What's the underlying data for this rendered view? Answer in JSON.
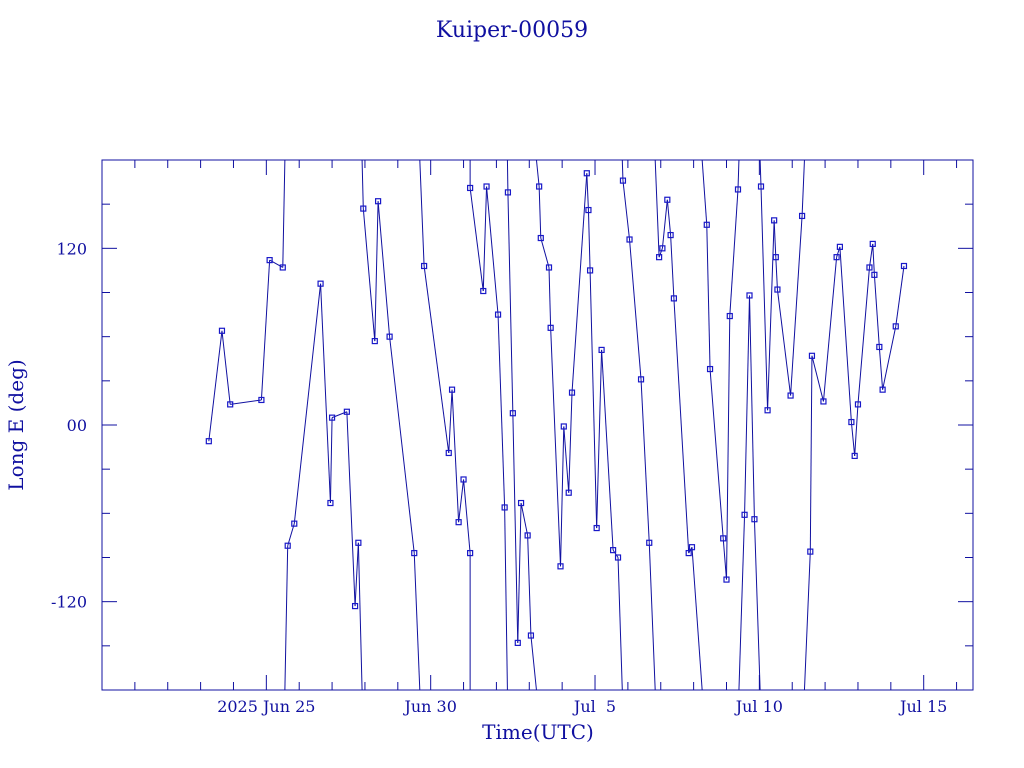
{
  "chart_data": {
    "type": "line",
    "title": "Kuiper-00059",
    "xlabel": "Time(UTC)",
    "ylabel": "Long E (deg)",
    "x_range_days_from_jun20": [
      0,
      26.5
    ],
    "ylim": [
      -180,
      180
    ],
    "y_ticks_major": [
      {
        "value": -120,
        "label": "-120"
      },
      {
        "value": 0,
        "label": "00"
      },
      {
        "value": 120,
        "label": "120"
      }
    ],
    "y_ticks_minor_step": 30,
    "x_ticks_major": [
      {
        "day": 5,
        "label": "2025 Jun 25"
      },
      {
        "day": 10,
        "label": "Jun 30"
      },
      {
        "day": 15,
        "label": "Jul  5"
      },
      {
        "day": 20,
        "label": "Jul 10"
      },
      {
        "day": 25,
        "label": "Jul 15"
      }
    ],
    "colors": {
      "line": "#1010a0",
      "marker": "#1818c8",
      "axes": "#1010a0"
    },
    "series": [
      {
        "wraps_at": 180,
        "points": [
          [
            3.25,
            -11
          ],
          [
            3.65,
            64
          ],
          [
            3.9,
            14
          ],
          [
            4.85,
            17
          ],
          [
            5.1,
            112
          ],
          [
            5.5,
            107
          ],
          [
            5.65,
            -82
          ],
          [
            5.85,
            -67
          ],
          [
            6.65,
            96
          ],
          [
            6.95,
            -53
          ],
          [
            7.0,
            5
          ],
          [
            7.45,
            9
          ],
          [
            7.7,
            -123
          ],
          [
            7.8,
            -80
          ],
          [
            7.95,
            147
          ],
          [
            8.3,
            57
          ],
          [
            8.4,
            152
          ],
          [
            8.75,
            60
          ],
          [
            9.5,
            -87
          ],
          [
            9.8,
            108
          ],
          [
            10.55,
            -19
          ],
          [
            10.65,
            24
          ],
          [
            10.85,
            -66
          ],
          [
            11.0,
            -37
          ],
          [
            11.2,
            -87
          ],
          [
            11.2,
            161
          ],
          [
            11.6,
            91
          ],
          [
            11.7,
            162
          ],
          [
            12.05,
            75
          ],
          [
            12.25,
            -56
          ],
          [
            12.35,
            158
          ],
          [
            12.5,
            8
          ],
          [
            12.65,
            -148
          ],
          [
            12.75,
            -53
          ],
          [
            12.95,
            -75
          ],
          [
            13.05,
            -143
          ],
          [
            13.3,
            162
          ],
          [
            13.35,
            127
          ],
          [
            13.6,
            107
          ],
          [
            13.65,
            66
          ],
          [
            13.95,
            -96
          ],
          [
            14.05,
            -1
          ],
          [
            14.2,
            -46
          ],
          [
            14.3,
            22
          ],
          [
            14.75,
            171
          ],
          [
            14.8,
            146
          ],
          [
            14.85,
            105
          ],
          [
            15.05,
            -70
          ],
          [
            15.2,
            51
          ],
          [
            15.55,
            -85
          ],
          [
            15.7,
            -90
          ],
          [
            15.85,
            166
          ],
          [
            16.05,
            126
          ],
          [
            16.4,
            31
          ],
          [
            16.65,
            -80
          ],
          [
            16.95,
            114
          ],
          [
            17.05,
            120
          ],
          [
            17.2,
            153
          ],
          [
            17.3,
            129
          ],
          [
            17.4,
            86
          ],
          [
            17.85,
            -87
          ],
          [
            17.95,
            -83
          ],
          [
            18.4,
            136
          ],
          [
            18.5,
            38
          ],
          [
            18.9,
            -77
          ],
          [
            19.0,
            -105
          ],
          [
            19.1,
            74
          ],
          [
            19.35,
            160
          ],
          [
            19.55,
            -61
          ],
          [
            19.7,
            88
          ],
          [
            19.85,
            -64
          ],
          [
            20.05,
            162
          ],
          [
            20.25,
            10
          ],
          [
            20.45,
            139
          ],
          [
            20.5,
            114
          ],
          [
            20.55,
            92
          ],
          [
            20.95,
            20
          ],
          [
            21.3,
            142
          ],
          [
            21.55,
            -86
          ],
          [
            21.6,
            47
          ],
          [
            21.95,
            16
          ],
          [
            22.35,
            114
          ],
          [
            22.45,
            121
          ],
          [
            22.8,
            2
          ],
          [
            22.9,
            -21
          ],
          [
            23.0,
            14
          ],
          [
            23.35,
            107
          ],
          [
            23.45,
            123
          ],
          [
            23.5,
            102
          ],
          [
            23.65,
            53
          ],
          [
            23.75,
            24
          ],
          [
            24.15,
            67
          ],
          [
            24.4,
            108
          ]
        ]
      }
    ]
  }
}
